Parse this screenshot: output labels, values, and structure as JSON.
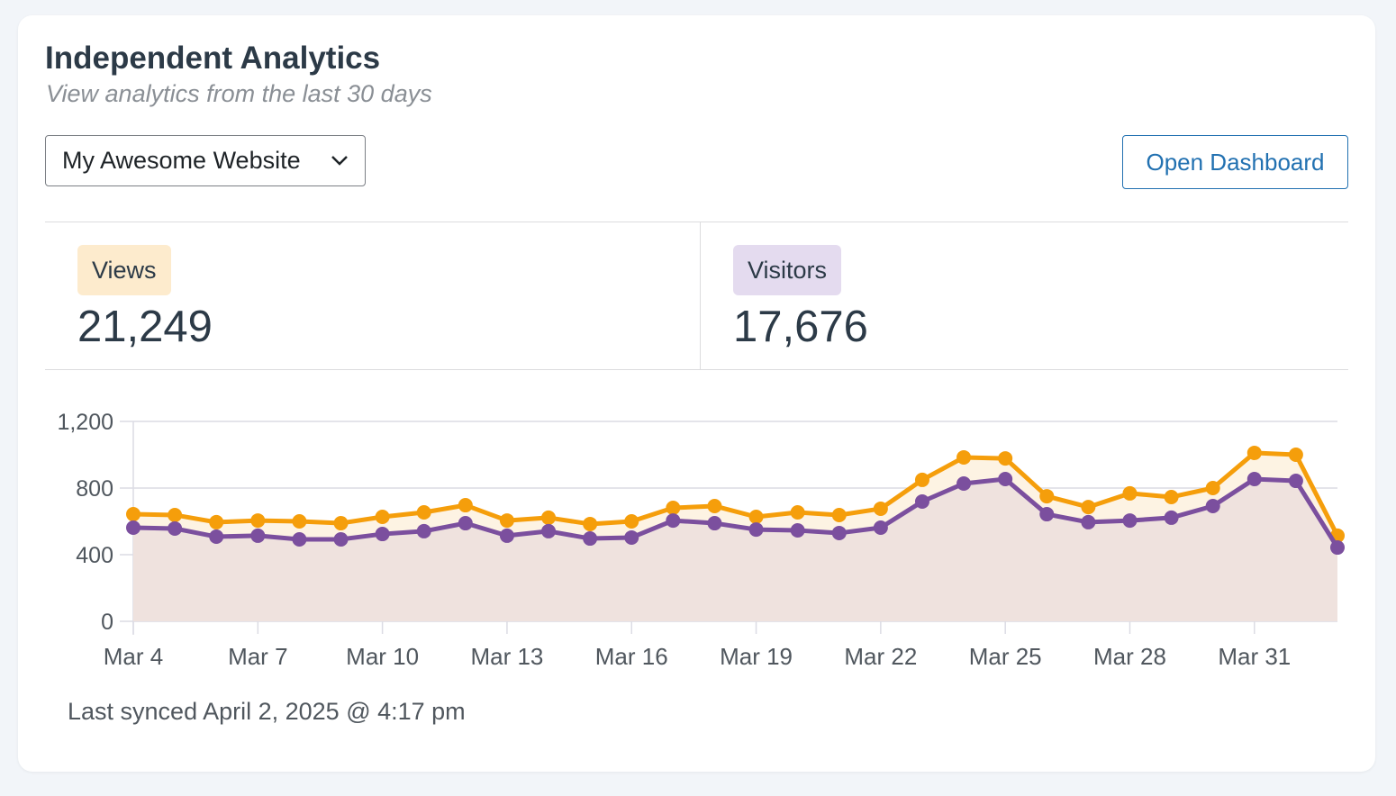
{
  "header": {
    "title": "Independent Analytics",
    "subtitle": "View analytics from the last 30 days"
  },
  "site_select": {
    "value": "My Awesome Website",
    "icon": "chevron-down-icon"
  },
  "open_dashboard_label": "Open Dashboard",
  "stats": [
    {
      "label": "Views",
      "value": "21,249",
      "color": "#f59e0b",
      "badge_bg": "#fdebcd"
    },
    {
      "label": "Visitors",
      "value": "17,676",
      "color": "#7b4f9e",
      "badge_bg": "#e4dbef"
    }
  ],
  "footer": {
    "synced": "Last synced April 2, 2025 @ 4:17 pm"
  },
  "chart_data": {
    "type": "line",
    "x": [
      "Mar 4",
      "Mar 5",
      "Mar 6",
      "Mar 7",
      "Mar 8",
      "Mar 9",
      "Mar 10",
      "Mar 11",
      "Mar 12",
      "Mar 13",
      "Mar 14",
      "Mar 15",
      "Mar 16",
      "Mar 17",
      "Mar 18",
      "Mar 19",
      "Mar 20",
      "Mar 21",
      "Mar 22",
      "Mar 23",
      "Mar 24",
      "Mar 25",
      "Mar 26",
      "Mar 27",
      "Mar 28",
      "Mar 29",
      "Mar 30",
      "Mar 31",
      "Apr 1",
      "Apr 2"
    ],
    "x_tick_labels": [
      "Mar 4",
      "Mar 7",
      "Mar 10",
      "Mar 13",
      "Mar 16",
      "Mar 19",
      "Mar 22",
      "Mar 25",
      "Mar 28",
      "Mar 31"
    ],
    "y_tick_labels": [
      "0",
      "400",
      "800",
      "1,200"
    ],
    "y_ticks": [
      0,
      400,
      800,
      1200
    ],
    "ylim": [
      0,
      1200
    ],
    "grid": true,
    "series": [
      {
        "name": "Views",
        "color": "#f59e0b",
        "fill": "#fdf3e3",
        "values": [
          643,
          638,
          595,
          605,
          600,
          589,
          627,
          654,
          697,
          605,
          622,
          584,
          600,
          681,
          692,
          627,
          654,
          638,
          676,
          849,
          984,
          978,
          751,
          686,
          768,
          746,
          800,
          1011,
          1000,
          514
        ]
      },
      {
        "name": "Visitors",
        "color": "#7b4f9e",
        "fill": "#efe2de",
        "values": [
          562,
          557,
          508,
          514,
          492,
          492,
          524,
          541,
          589,
          514,
          541,
          497,
          503,
          605,
          589,
          551,
          546,
          530,
          562,
          719,
          827,
          854,
          643,
          595,
          605,
          622,
          692,
          854,
          843,
          443
        ]
      }
    ]
  }
}
